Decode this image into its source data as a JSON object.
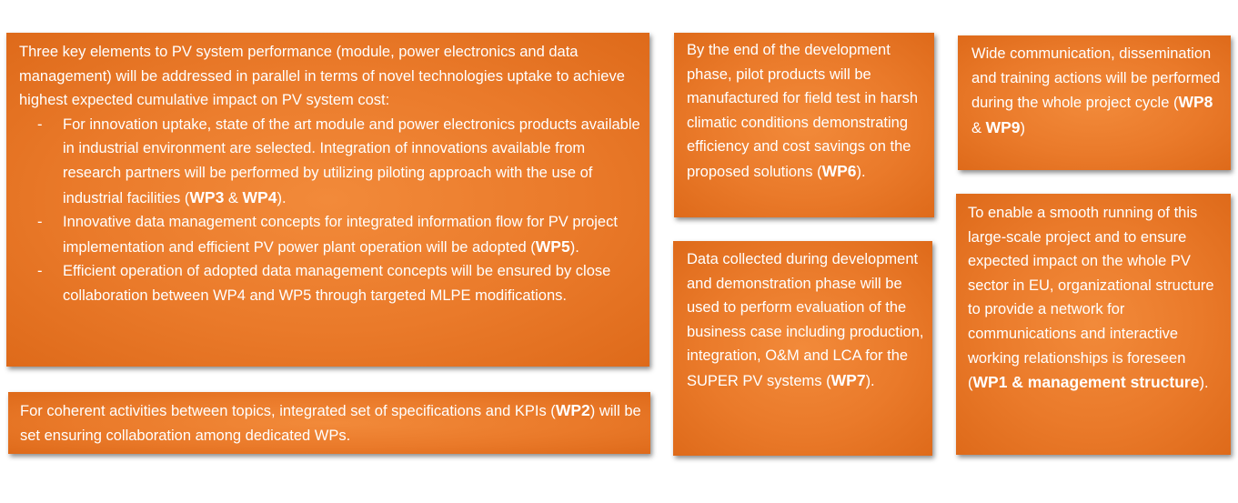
{
  "main_box": {
    "intro": "Three key elements to PV system performance (module, power electronics and data management) will be addressed in parallel in terms of novel technologies uptake to achieve highest expected cumulative impact on PV system cost:",
    "bullets": [
      {
        "dash": "-",
        "text": "For innovation uptake, state of the art module and power electronics products available in industrial environment are selected. Integration of innovations available from research partners will be performed by utilizing piloting approach with the use of industrial facilities (",
        "wp_a": "WP3",
        "amp": " & ",
        "wp_b": "WP4",
        "end": ")."
      },
      {
        "dash": "-",
        "text": "Innovative data management concepts for integrated information flow for PV project implementation and efficient PV power plant operation will be adopted (",
        "wp_a": "WP5",
        "end": ")."
      },
      {
        "dash": "-",
        "text": "Efficient operation of adopted data management concepts will be ensured by close collaboration between WP4 and WP5 through targeted MLPE modifications."
      }
    ]
  },
  "wp2_box": {
    "text": "For coherent activities between topics, integrated set of specifications and KPIs (",
    "wp": "WP2",
    "end": ") will be set ensuring collaboration among dedicated WPs."
  },
  "wp6_box": {
    "text": "By the end of the development phase, pilot products will be manufactured for field test in harsh climatic conditions demonstrating efficiency and cost savings on the proposed solutions (",
    "wp": "WP6",
    "end": ")."
  },
  "wp7_box": {
    "text": "Data collected during development and demonstration phase will be used to perform evaluation of the business case including production, integration, O&M and LCA for the SUPER PV systems (",
    "wp": "WP7",
    "end": ")."
  },
  "wp89_box": {
    "text": "Wide communication, dissemination and training actions will be performed during the whole project cycle (",
    "wp_a": "WP8",
    "amp": " & ",
    "wp_b": "WP9",
    "end": ")"
  },
  "wp1_box": {
    "text": "To enable a smooth running of this large-scale project and to ensure expected impact on the whole PV sector in EU, organizational structure to provide a network for communications and interactive working relationships is foreseen (",
    "wp": "WP1 & management structure",
    "end": ")."
  },
  "colors": {
    "box_fill": "#ea7a2a",
    "text": "#ffffff"
  }
}
